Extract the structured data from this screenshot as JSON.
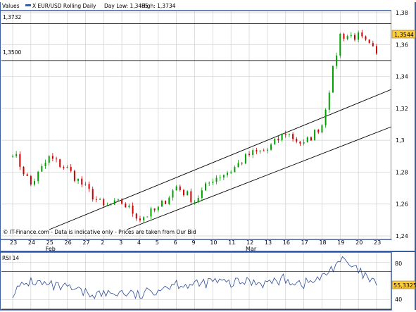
{
  "header": {
    "values_label": "Values",
    "symbol": "X EUR/USD Rolling Daily",
    "day_low": "Day Low: 1,3485",
    "high": "High: 1,3734"
  },
  "main_panel": {
    "ref_line_top_label": "1,3732",
    "ref_line_mid_label": "1,3500",
    "last_price_badge": "1,3544",
    "watermark": "© IT-Finance.com - Data is indicative only - Prices are taken from Our Bid",
    "y_ticks": [
      "1,38",
      "1,36",
      "1,34",
      "1,32",
      "1,3",
      "1,28",
      "1,26",
      "1,24"
    ],
    "x_day_ticks": [
      "23",
      "24",
      "25",
      "26",
      "27",
      "2",
      "3",
      "4",
      "5",
      "6",
      "9",
      "10",
      "11",
      "12",
      "13",
      "16",
      "17",
      "18",
      "19",
      "20",
      "23"
    ],
    "x_month_labels": [
      "Feb",
      "Mar"
    ]
  },
  "rsi_panel": {
    "title": "RSI 14",
    "y_ticks": [
      "80",
      "40"
    ],
    "last_value_badge": "55,3325"
  },
  "colors": {
    "border": "#3a5da0",
    "price_line": "#00a000",
    "candle_up": "#00a000",
    "candle_down": "#cc0000",
    "rsi_line": "#2a4a9a",
    "badge_fill": "#ffcc33",
    "grid": "#cfcfcf"
  },
  "chart_data": [
    {
      "type": "line",
      "title": "X EUR/USD Rolling Daily",
      "xlabel": "",
      "ylabel": "",
      "ylim": [
        1.24,
        1.38
      ],
      "x": [
        "23 Jan",
        "24 Jan",
        "25 Jan",
        "26 Jan",
        "27 Jan",
        "2 Feb",
        "3 Feb",
        "4 Feb",
        "5 Feb",
        "6 Feb",
        "9 Feb",
        "10 Feb",
        "11 Feb",
        "12 Feb",
        "13 Feb",
        "16 Feb",
        "17 Feb",
        "18 Feb",
        "19 Feb",
        "20 Feb",
        "23 Feb"
      ],
      "series": [
        {
          "name": "",
          "values": [
            1.293,
            1.272,
            1.289,
            1.282,
            1.27,
            1.258,
            1.261,
            1.251,
            1.257,
            1.271,
            1.262,
            1.276,
            1.281,
            1.291,
            1.294,
            1.305,
            1.297,
            1.31,
            1.366,
            1.365,
            1.3544
          ]
        }
      ],
      "reference_lines": [
        1.3732,
        1.35
      ],
      "grid": true,
      "legend": "none"
    },
    {
      "type": "line",
      "title": "RSI 14",
      "ylim": [
        30,
        90
      ],
      "series": [
        {
          "name": "",
          "values": [
            48,
            60,
            55,
            52,
            47,
            46,
            48,
            44,
            52,
            58,
            55,
            60,
            57,
            60,
            58,
            62,
            57,
            63,
            83,
            70,
            55.3325
          ]
        }
      ],
      "reference_lines": [
        70,
        30
      ],
      "grid": true,
      "legend": "none"
    }
  ]
}
